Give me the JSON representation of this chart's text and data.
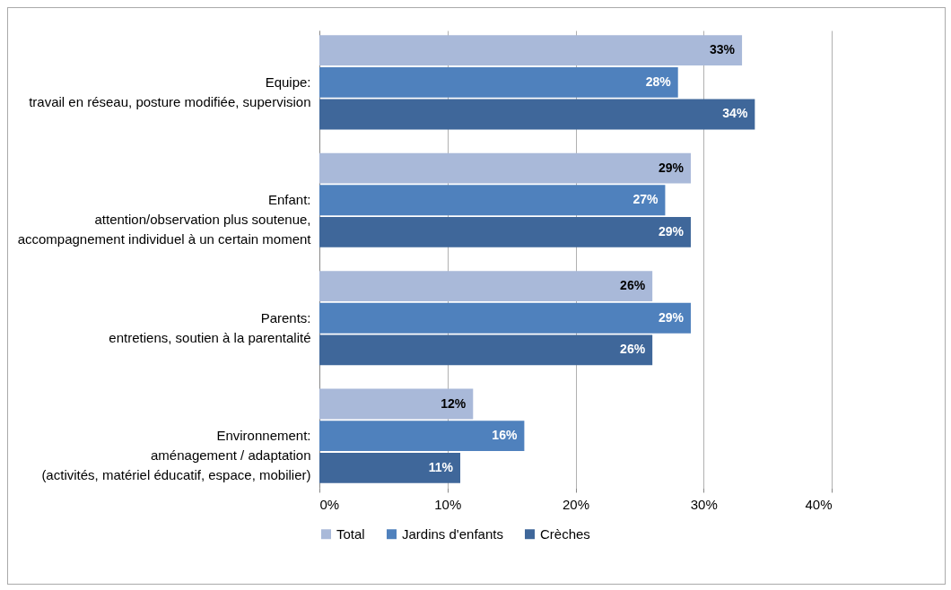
{
  "chart_data": {
    "type": "bar",
    "orientation": "horizontal",
    "categories": [
      "Equipe:\ntravail en réseau, posture modifiée, supervision",
      "Enfant:\nattention/observation plus soutenue,\naccompagnement individuel à un certain moment",
      "Parents:\nentretiens, soutien à la parentalité",
      "Environnement:\naménagement / adaptation\n(activités, matériel éducatif, espace, mobilier)"
    ],
    "series": [
      {
        "name": "Total",
        "color": "#a9b9d9",
        "values": [
          33,
          29,
          26,
          12
        ],
        "value_labels": [
          "33%",
          "29%",
          "26%",
          "12%"
        ]
      },
      {
        "name": "Jardins d'enfants",
        "color": "#4f81bd",
        "values": [
          28,
          27,
          29,
          16
        ],
        "value_labels": [
          "28%",
          "27%",
          "29%",
          "16%"
        ]
      },
      {
        "name": "Crèches",
        "color": "#3f679a",
        "values": [
          34,
          29,
          26,
          11
        ],
        "value_labels": [
          "34%",
          "29%",
          "26%",
          "11%"
        ]
      }
    ],
    "xlim": [
      0,
      40
    ],
    "xticks": [
      {
        "value": 0,
        "label": "0%"
      },
      {
        "value": 10,
        "label": "10%"
      },
      {
        "value": 20,
        "label": "20%"
      },
      {
        "value": 30,
        "label": "30%"
      },
      {
        "value": 40,
        "label": "40%"
      }
    ],
    "grid": "x",
    "legend": "bottom"
  }
}
